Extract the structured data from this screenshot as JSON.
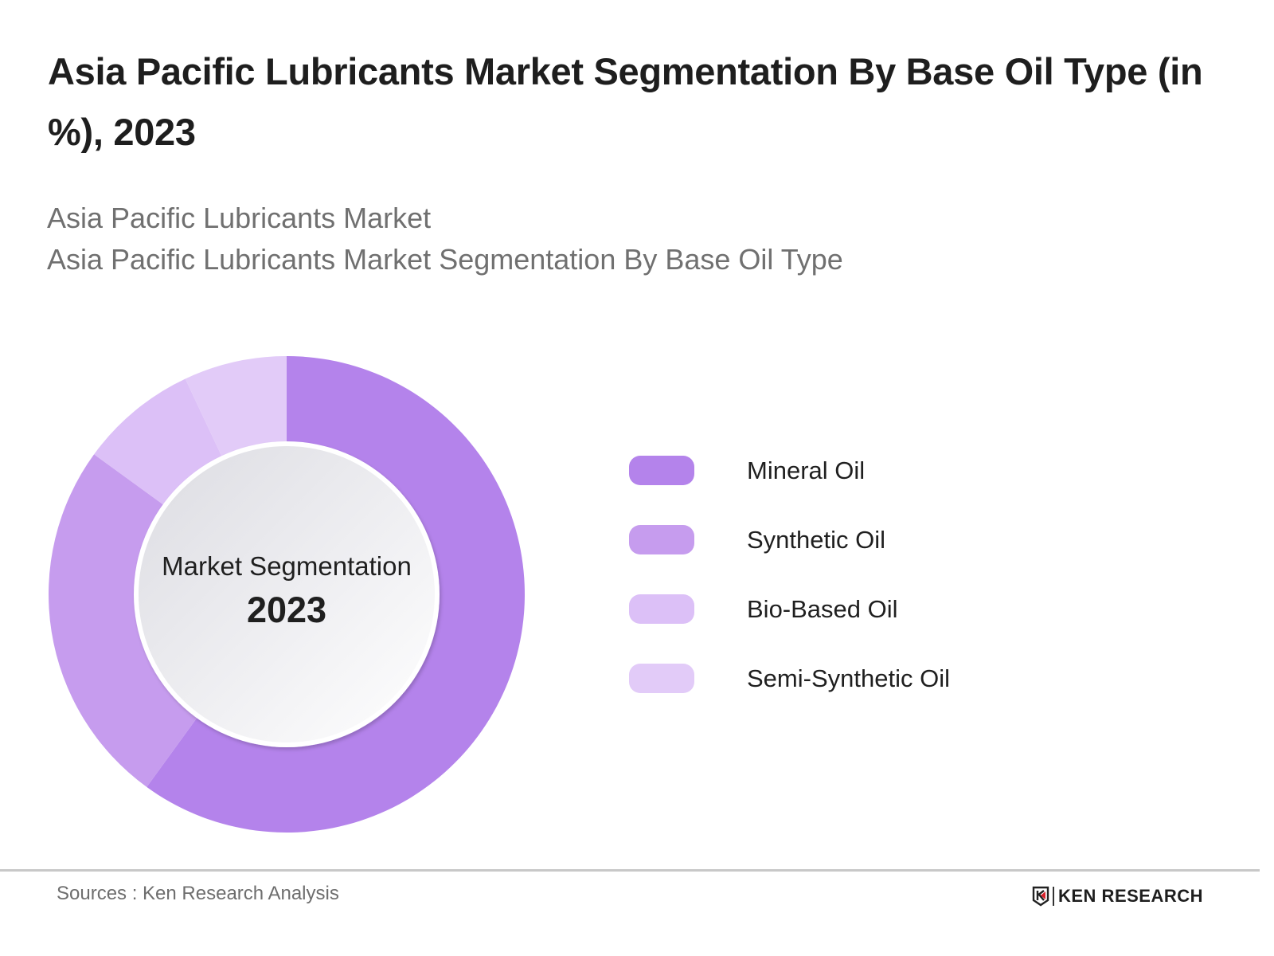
{
  "header": {
    "title": "Asia Pacific Lubricants Market Segmentation By Base Oil Type (in %), 2023",
    "subtitle_lines": [
      "Asia Pacific Lubricants Market",
      "Asia Pacific Lubricants Market Segmentation By Base Oil Type"
    ]
  },
  "chart": {
    "center_caption": "Market Segmentation",
    "center_year": "2023"
  },
  "legend": [
    {
      "label": "Mineral Oil",
      "color": "#b483eb"
    },
    {
      "label": "Synthetic Oil",
      "color": "#c69cee"
    },
    {
      "label": "Bio-Based Oil",
      "color": "#dcc0f7"
    },
    {
      "label": "Semi-Synthetic Oil",
      "color": "#e2cbf8"
    }
  ],
  "footer": {
    "source": "Sources : Ken Research Analysis",
    "logo_text": "KEN RESEARCH"
  },
  "chart_data": {
    "type": "pie",
    "variant": "donut",
    "title": "Asia Pacific Lubricants Market Segmentation By Base Oil Type (in %), 2023",
    "subtitle": "Asia Pacific Lubricants Market / Asia Pacific Lubricants Market Segmentation By Base Oil Type",
    "categories": [
      "Mineral Oil",
      "Synthetic Oil",
      "Bio-Based Oil",
      "Semi-Synthetic Oil"
    ],
    "values": [
      60,
      25,
      8,
      7
    ],
    "unit": "%",
    "colors": [
      "#b483eb",
      "#c69cee",
      "#dcc0f7",
      "#e2cbf8"
    ],
    "center_text": [
      "Market Segmentation",
      "2023"
    ],
    "legend_position": "right",
    "data_labels": false,
    "source": "Sources : Ken Research Analysis"
  }
}
